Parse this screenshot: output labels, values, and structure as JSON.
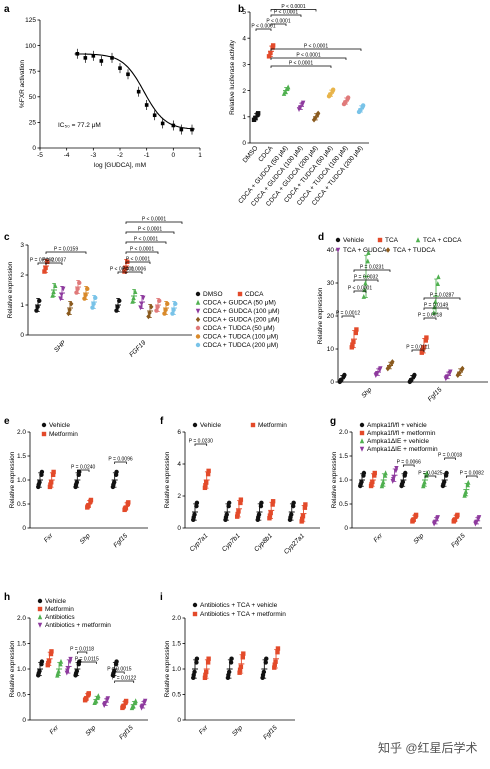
{
  "colors": {
    "black": "#111111",
    "red": "#e34a2a",
    "green": "#4fb04f",
    "purple": "#8e3a9e",
    "brown": "#8a5a1e",
    "yellow": "#e8b44a",
    "pink": "#e07a7a",
    "teal": "#3fa8a0",
    "lightblue": "#79c3e8",
    "orange": "#d98a2b",
    "darkred": "#b5302a"
  },
  "watermark": "知乎 @红星后学术",
  "chart_data": [
    {
      "panel": "a",
      "type": "line",
      "xlabel": "log [GUDCA], mM",
      "ylabel": "%FXR activation",
      "xlim": [
        -5,
        1
      ],
      "ylim": [
        0,
        125
      ],
      "xticks": [
        "-5",
        "-4",
        "-3",
        "-2",
        "-1",
        "0",
        "1"
      ],
      "yticks": [
        "0",
        "25",
        "50",
        "75",
        "100",
        "125"
      ],
      "annotation": "IC₅₀ = 77.2 μM",
      "x": [
        -3.6,
        -3.3,
        -3.0,
        -2.7,
        -2.3,
        -2.0,
        -1.7,
        -1.3,
        -1.0,
        -0.7,
        -0.4,
        0.0,
        0.3,
        0.7
      ],
      "y": [
        92,
        88,
        90,
        85,
        88,
        78,
        72,
        55,
        42,
        32,
        24,
        22,
        18,
        18
      ]
    },
    {
      "panel": "b",
      "type": "scatter",
      "ylabel": "Relative luciferase activity",
      "ylim": [
        0,
        5
      ],
      "yticks": [
        "0",
        "1",
        "2",
        "3",
        "4",
        "5"
      ],
      "categories": [
        "DMSO",
        "CDCA",
        "CDCA + GUDCA (50 μM)",
        "CDCA + GUDCA (100 μM)",
        "CDCA + GUDCA (200 μM)",
        "CDCA + TUDCA (50 μM)",
        "CDCA + TUDCA (100 μM)",
        "CDCA + TUDCA (200 μM)"
      ],
      "values": [
        1.0,
        3.5,
        2.0,
        1.4,
        1.0,
        1.9,
        1.6,
        1.3
      ],
      "pvalues": [
        "P < 0.0001",
        "P < 0.0001",
        "P < 0.0001",
        "P < 0.0001",
        "P < 0.0001",
        "P < 0.0001",
        "P < 0.0001"
      ]
    },
    {
      "panel": "c",
      "type": "scatter",
      "ylabel": "Relative expression",
      "ylim": [
        0,
        3
      ],
      "yticks": [
        "0",
        "1",
        "2",
        "3"
      ],
      "categories": [
        "SHP",
        "FGF19"
      ],
      "series": [
        {
          "name": "DMSO",
          "values": [
            1.0,
            1.0
          ]
        },
        {
          "name": "CDCA",
          "values": [
            2.3,
            2.3
          ]
        },
        {
          "name": "CDCA + GUDCA (50 μM)",
          "values": [
            1.5,
            1.3
          ]
        },
        {
          "name": "CDCA + GUDCA (100 μM)",
          "values": [
            1.4,
            1.1
          ]
        },
        {
          "name": "CDCA + GUDCA (200 μM)",
          "values": [
            0.9,
            0.8
          ]
        },
        {
          "name": "CDCA + TUDCA (50 μM)",
          "values": [
            1.6,
            1.0
          ]
        },
        {
          "name": "CDCA + TUDCA (100 μM)",
          "values": [
            1.4,
            0.9
          ]
        },
        {
          "name": "CDCA + TUDCA (200 μM)",
          "values": [
            1.1,
            0.9
          ]
        }
      ],
      "pvalues_left": [
        "P = 0.0062",
        "P = 0.0037",
        "P = 0.0159"
      ],
      "pvalues_right": [
        "P < 0.0001",
        "P = 0.0006",
        "P < 0.0001",
        "P < 0.0001",
        "P < 0.0001",
        "P < 0.0001",
        "P < 0.0001"
      ]
    },
    {
      "panel": "d",
      "type": "scatter",
      "ylabel": "Relative expression",
      "ylim": [
        0,
        40
      ],
      "yticks": [
        "0",
        "10",
        "20",
        "30",
        "40"
      ],
      "categories": [
        "Shp",
        "Fgf15"
      ],
      "series": [
        {
          "name": "Vehicle",
          "values": [
            1,
            1
          ]
        },
        {
          "name": "TCA",
          "values": [
            13,
            11
          ]
        },
        {
          "name": "TCA + CDCA",
          "values": [
            32,
            26
          ]
        },
        {
          "name": "TCA + GUDCA",
          "values": [
            3,
            2
          ]
        },
        {
          "name": "TCA + TUDCA",
          "values": [
            5,
            3
          ]
        }
      ],
      "pvalues_left": [
        "P = 0.0012",
        "P < 0.0001",
        "P = 0.0032",
        "P = 0.0231"
      ],
      "pvalues_right": [
        "P = 0.0111",
        "P = 0.0018",
        "P = 0.0149",
        "P = 0.0287"
      ]
    },
    {
      "panel": "e",
      "type": "scatter",
      "ylabel": "Relative expression",
      "ylim": [
        0,
        2
      ],
      "yticks": [
        "0",
        "0.5",
        "1.0",
        "1.5",
        "2.0"
      ],
      "categories": [
        "Fxr",
        "Shp",
        "Fgf15"
      ],
      "series": [
        {
          "name": "Vehicle",
          "values": [
            1.0,
            1.0,
            1.0
          ]
        },
        {
          "name": "Metformin",
          "values": [
            1.0,
            0.5,
            0.45
          ]
        }
      ],
      "pvalues": [
        "P = 0.0240",
        "P = 0.0096"
      ]
    },
    {
      "panel": "f",
      "type": "scatter",
      "ylabel": "Relative expression",
      "ylim": [
        0,
        6
      ],
      "yticks": [
        "0",
        "2",
        "4",
        "6"
      ],
      "categories": [
        "Cyp7a1",
        "Cyp7b1",
        "Cyp8b1",
        "Cyp27a1"
      ],
      "series": [
        {
          "name": "Vehicle",
          "values": [
            1.0,
            1.0,
            1.0,
            1.0
          ]
        },
        {
          "name": "Metformin",
          "values": [
            3.0,
            1.2,
            1.1,
            0.9
          ]
        }
      ],
      "pvalues": [
        "P = 0.0230"
      ]
    },
    {
      "panel": "g",
      "type": "scatter",
      "ylabel": "Relative expression",
      "ylim": [
        0,
        2
      ],
      "yticks": [
        "0",
        "0.5",
        "1.0",
        "1.5",
        "2.0"
      ],
      "categories": [
        "Fxr",
        "Shp",
        "Fgf15"
      ],
      "series": [
        {
          "name": "Ampka1fl/fl + vehicle",
          "values": [
            1.0,
            1.0,
            1.0
          ]
        },
        {
          "name": "Ampka1fl/fl + metformin",
          "values": [
            1.0,
            0.2,
            0.2
          ]
        },
        {
          "name": "Ampka1ΔIE + vehicle",
          "values": [
            1.0,
            1.0,
            0.8
          ]
        },
        {
          "name": "Ampka1ΔIE + metformin",
          "values": [
            1.1,
            0.15,
            0.15
          ]
        }
      ],
      "pvalues": [
        "P = 0.0066",
        "P = 0.0425",
        "P = 0.0018",
        "P = 0.0082"
      ]
    },
    {
      "panel": "h",
      "type": "scatter",
      "ylabel": "Relative expression",
      "ylim": [
        0,
        2
      ],
      "yticks": [
        "0",
        "0.5",
        "1.0",
        "1.5",
        "2.0"
      ],
      "categories": [
        "Fxr",
        "Shp",
        "Fgf15"
      ],
      "series": [
        {
          "name": "Vehicle",
          "values": [
            1.0,
            1.0,
            1.0
          ]
        },
        {
          "name": "Metformin",
          "values": [
            1.2,
            0.45,
            0.3
          ]
        },
        {
          "name": "Antibiotics",
          "values": [
            1.0,
            0.4,
            0.3
          ]
        },
        {
          "name": "Antibiotics + metformin",
          "values": [
            1.05,
            0.35,
            0.3
          ]
        }
      ],
      "pvalues": [
        "P = 0.0118",
        "P = 0.0115",
        "P = 0.0015",
        "P = 0.0122"
      ]
    },
    {
      "panel": "i",
      "type": "scatter",
      "ylabel": "Relative expression",
      "ylim": [
        0,
        2
      ],
      "yticks": [
        "0",
        "0.5",
        "1.0",
        "1.5",
        "2.0"
      ],
      "categories": [
        "Fxr",
        "Shp",
        "Fgf15"
      ],
      "series": [
        {
          "name": "Antibiotics + TCA + vehicle",
          "values": [
            1.0,
            1.0,
            1.0
          ]
        },
        {
          "name": "Antibiotics + TCA + metformin",
          "values": [
            1.0,
            1.1,
            1.2
          ]
        }
      ]
    }
  ]
}
